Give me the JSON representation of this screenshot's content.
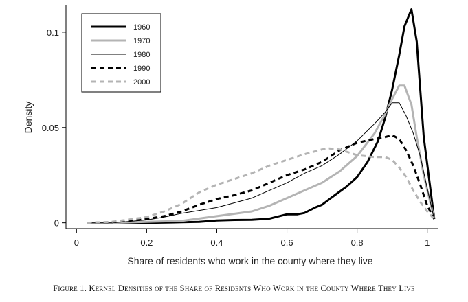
{
  "chart_data": {
    "type": "line",
    "title": "",
    "xlabel": "Share of residents who work in the county where they live",
    "ylabel": "Density",
    "xlim": [
      -0.03,
      1.03
    ],
    "ylim": [
      -0.003,
      0.114
    ],
    "grid": false,
    "legend_placement": "top-left",
    "x_ticks": [
      {
        "value": 0,
        "label": "0"
      },
      {
        "value": 0.2,
        "label": "0.2"
      },
      {
        "value": 0.4,
        "label": "0.4"
      },
      {
        "value": 0.6,
        "label": "0.6"
      },
      {
        "value": 0.8,
        "label": "0.8"
      },
      {
        "value": 1.0,
        "label": "1"
      }
    ],
    "y_ticks": [
      {
        "value": 0,
        "label": "0"
      },
      {
        "value": 0.05,
        "label": "0.05"
      },
      {
        "value": 0.1,
        "label": "0.1"
      }
    ],
    "series": [
      {
        "name": "1960",
        "color": "#000000",
        "width": 3,
        "dash": "",
        "x": [
          0.03,
          0.1,
          0.2,
          0.3,
          0.35,
          0.4,
          0.45,
          0.5,
          0.55,
          0.6,
          0.63,
          0.65,
          0.68,
          0.7,
          0.74,
          0.77,
          0.8,
          0.83,
          0.86,
          0.88,
          0.9,
          0.92,
          0.935,
          0.955,
          0.97,
          0.99,
          1.02
        ],
        "y": [
          0,
          0,
          0,
          0.0003,
          0.0005,
          0.0012,
          0.0015,
          0.0016,
          0.0022,
          0.0045,
          0.0045,
          0.0052,
          0.008,
          0.0095,
          0.015,
          0.019,
          0.024,
          0.032,
          0.043,
          0.055,
          0.07,
          0.088,
          0.103,
          0.112,
          0.095,
          0.045,
          0.002
        ]
      },
      {
        "name": "1970",
        "color": "#b4b4b4",
        "width": 3,
        "dash": "",
        "x": [
          0.03,
          0.1,
          0.2,
          0.3,
          0.4,
          0.5,
          0.55,
          0.6,
          0.65,
          0.7,
          0.75,
          0.8,
          0.85,
          0.88,
          0.9,
          0.92,
          0.935,
          0.955,
          0.97,
          0.99,
          1.02
        ],
        "y": [
          0,
          0,
          0.0005,
          0.001,
          0.0035,
          0.006,
          0.009,
          0.013,
          0.017,
          0.021,
          0.027,
          0.035,
          0.047,
          0.057,
          0.065,
          0.072,
          0.072,
          0.062,
          0.045,
          0.025,
          0.002
        ]
      },
      {
        "name": "1980",
        "color": "#000000",
        "width": 1,
        "dash": "",
        "x": [
          0.03,
          0.1,
          0.2,
          0.25,
          0.3,
          0.35,
          0.4,
          0.45,
          0.5,
          0.55,
          0.6,
          0.65,
          0.7,
          0.75,
          0.8,
          0.85,
          0.88,
          0.9,
          0.92,
          0.94,
          0.96,
          0.98,
          1.0,
          1.02
        ],
        "y": [
          0,
          0,
          0.0015,
          0.003,
          0.005,
          0.0065,
          0.008,
          0.0105,
          0.013,
          0.017,
          0.021,
          0.026,
          0.03,
          0.036,
          0.043,
          0.052,
          0.058,
          0.063,
          0.063,
          0.056,
          0.047,
          0.035,
          0.018,
          0.002
        ]
      },
      {
        "name": "1990",
        "color": "#000000",
        "width": 3,
        "dash": "7,5",
        "x": [
          0.03,
          0.1,
          0.2,
          0.25,
          0.3,
          0.35,
          0.4,
          0.45,
          0.5,
          0.55,
          0.6,
          0.65,
          0.7,
          0.75,
          0.8,
          0.85,
          0.88,
          0.9,
          0.92,
          0.94,
          0.96,
          0.98,
          1.0,
          1.02
        ],
        "y": [
          0,
          0.0003,
          0.002,
          0.0035,
          0.006,
          0.0095,
          0.0125,
          0.0145,
          0.017,
          0.021,
          0.025,
          0.028,
          0.032,
          0.038,
          0.042,
          0.044,
          0.045,
          0.046,
          0.044,
          0.038,
          0.03,
          0.02,
          0.009,
          0.002
        ]
      },
      {
        "name": "2000",
        "color": "#b4b4b4",
        "width": 3,
        "dash": "7,5",
        "x": [
          0.03,
          0.1,
          0.2,
          0.25,
          0.3,
          0.35,
          0.4,
          0.45,
          0.5,
          0.55,
          0.6,
          0.65,
          0.7,
          0.72,
          0.75,
          0.8,
          0.85,
          0.88,
          0.9,
          0.92,
          0.94,
          0.96,
          0.98,
          1.0,
          1.02
        ],
        "y": [
          0,
          0.0005,
          0.003,
          0.006,
          0.01,
          0.016,
          0.02,
          0.023,
          0.026,
          0.03,
          0.033,
          0.036,
          0.0385,
          0.039,
          0.0385,
          0.0355,
          0.0345,
          0.0345,
          0.033,
          0.029,
          0.024,
          0.017,
          0.011,
          0.006,
          0.002
        ]
      }
    ]
  },
  "caption": "Figure 1. Kernel Densities of the Share of Residents Who Work in the County Where They Live"
}
